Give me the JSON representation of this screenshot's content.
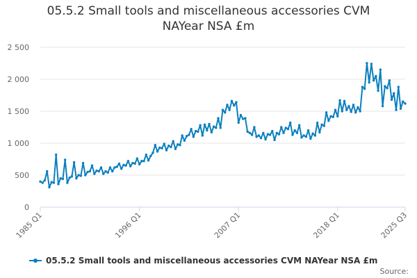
{
  "title": "05.5.2 Small tools and miscellaneous accessories CVM NAYear NSA £m",
  "credit": "Source:",
  "colors": {
    "series": "#0a7fbe",
    "grid": "#e6e6e6",
    "axis": "#ccd6eb"
  },
  "chart_data": {
    "type": "line",
    "title": "05.5.2 Small tools and miscellaneous accessories CVM NAYear NSA £m",
    "xlabel": "",
    "ylabel": "",
    "ylim": [
      0,
      2500
    ],
    "yticks": [
      0,
      500,
      1000,
      1500,
      2000,
      2500
    ],
    "ytick_labels": [
      "0",
      "500",
      "1 000",
      "1 500",
      "2 000",
      "2 500"
    ],
    "xtick_labels": [
      "1985 Q1",
      "1996 Q1",
      "2007 Q1",
      "2018 Q1",
      "2025 Q3"
    ],
    "xtick_index": [
      0,
      44,
      88,
      132,
      162
    ],
    "grid": true,
    "legend": "bottom",
    "series": [
      {
        "name": "05.5.2 Small tools and miscellaneous accessories CVM NAYear NSA £m",
        "values": [
          400,
          380,
          420,
          560,
          310,
          390,
          380,
          820,
          360,
          450,
          440,
          740,
          380,
          460,
          480,
          700,
          450,
          500,
          490,
          690,
          500,
          550,
          560,
          650,
          520,
          570,
          560,
          620,
          520,
          560,
          540,
          620,
          560,
          620,
          630,
          680,
          600,
          660,
          650,
          720,
          640,
          690,
          680,
          760,
          670,
          720,
          720,
          820,
          730,
          800,
          850,
          970,
          870,
          930,
          920,
          990,
          890,
          960,
          940,
          1030,
          910,
          980,
          970,
          1120,
          1040,
          1110,
          1130,
          1220,
          1100,
          1190,
          1180,
          1280,
          1120,
          1290,
          1200,
          1300,
          1170,
          1260,
          1240,
          1390,
          1240,
          1520,
          1480,
          1600,
          1520,
          1660,
          1590,
          1640,
          1320,
          1440,
          1380,
          1390,
          1180,
          1160,
          1130,
          1250,
          1100,
          1120,
          1080,
          1160,
          1060,
          1140,
          1130,
          1190,
          1050,
          1160,
          1140,
          1250,
          1160,
          1240,
          1220,
          1320,
          1130,
          1200,
          1160,
          1280,
          1090,
          1120,
          1100,
          1200,
          1070,
          1150,
          1120,
          1320,
          1170,
          1290,
          1270,
          1480,
          1350,
          1420,
          1410,
          1520,
          1420,
          1670,
          1500,
          1660,
          1520,
          1580,
          1490,
          1600,
          1480,
          1560,
          1500,
          1880,
          1850,
          2250,
          1950,
          2240,
          1980,
          2050,
          1820,
          2150,
          1580,
          1890,
          1860,
          1980,
          1680,
          1780,
          1520,
          1880,
          1540,
          1650,
          1620
        ]
      }
    ]
  }
}
